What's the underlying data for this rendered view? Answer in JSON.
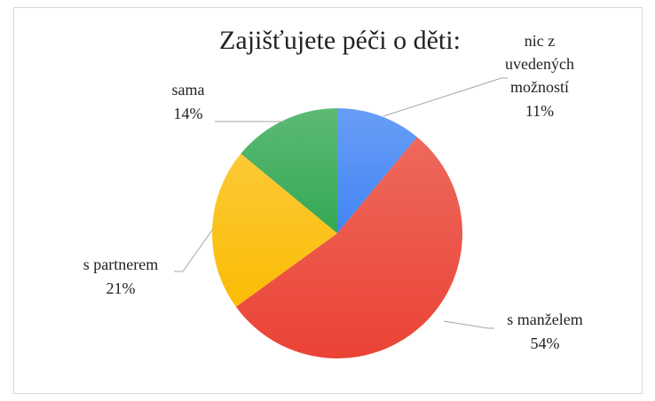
{
  "chart_data": {
    "type": "pie",
    "title": "Zajišťujete péči o děti:",
    "categories": [
      "nic z uvedených možností",
      "s manželem",
      "s partnerem",
      "sama"
    ],
    "values": [
      11,
      54,
      21,
      14
    ],
    "value_labels": [
      "11%",
      "54%",
      "21%",
      "14%"
    ],
    "colors": [
      "#4285f4",
      "#ea4335",
      "#fbbc04",
      "#34a853"
    ]
  }
}
